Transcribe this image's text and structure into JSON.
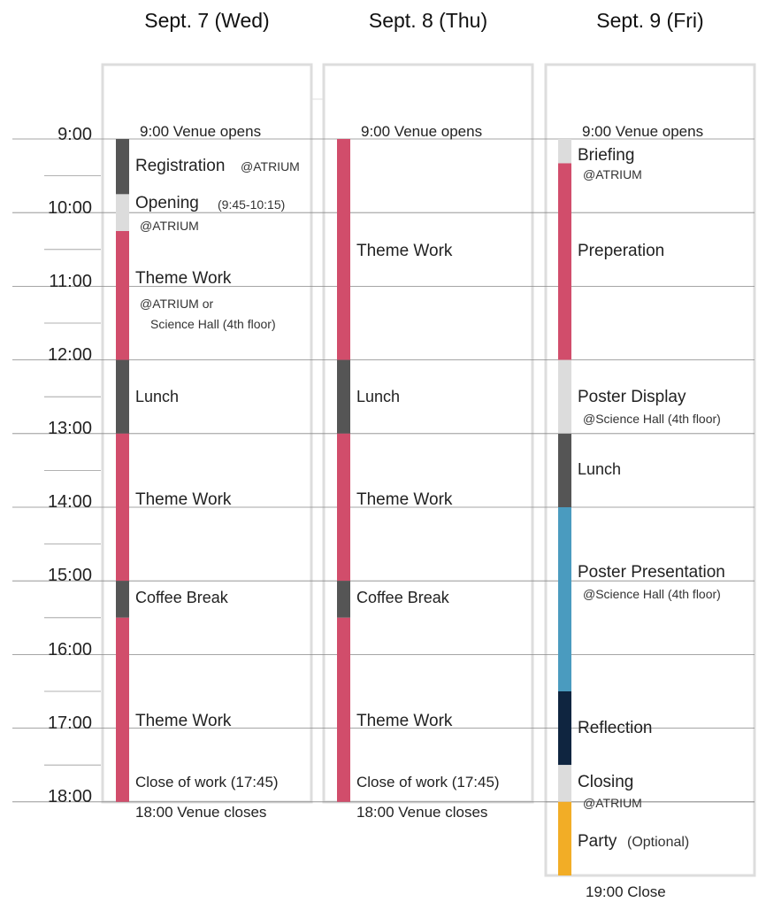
{
  "days": [
    {
      "title": "Sept. 7 (Wed)",
      "events": [
        {
          "start": 9.0,
          "end": 9.75,
          "color": "#555555"
        },
        {
          "start": 9.75,
          "end": 10.25,
          "color": "#dcdcdc"
        },
        {
          "start": 10.25,
          "end": 12.0,
          "color": "#d14d6b"
        },
        {
          "start": 12.0,
          "end": 13.0,
          "color": "#555555"
        },
        {
          "start": 13.0,
          "end": 15.0,
          "color": "#d14d6b"
        },
        {
          "start": 15.0,
          "end": 15.5,
          "color": "#555555"
        },
        {
          "start": 15.5,
          "end": 18.0,
          "color": "#d14d6b"
        }
      ],
      "opens": "9:00  Venue opens",
      "registration": "Registration",
      "registration_at": "@ATRIUM",
      "opening": "Opening",
      "opening_time": "(9:45-10:15)",
      "opening_at": "@ATRIUM",
      "theme1": "Theme Work",
      "theme1_at1": "@ATRIUM or",
      "theme1_at2": "Science Hall (4th floor)",
      "lunch": "Lunch",
      "theme2": "Theme Work",
      "coffee": "Coffee Break",
      "theme3": "Theme Work",
      "close_work": "Close of work (17:45)",
      "closes": "18:00  Venue closes"
    },
    {
      "title": "Sept. 8 (Thu)",
      "events": [
        {
          "start": 9.0,
          "end": 12.0,
          "color": "#d14d6b"
        },
        {
          "start": 12.0,
          "end": 13.0,
          "color": "#555555"
        },
        {
          "start": 13.0,
          "end": 15.0,
          "color": "#d14d6b"
        },
        {
          "start": 15.0,
          "end": 15.5,
          "color": "#555555"
        },
        {
          "start": 15.5,
          "end": 18.0,
          "color": "#d14d6b"
        }
      ],
      "opens": "9:00  Venue opens",
      "theme1": "Theme Work",
      "lunch": "Lunch",
      "theme2": "Theme Work",
      "coffee": "Coffee Break",
      "theme3": "Theme Work",
      "close_work": "Close of work (17:45)",
      "closes": "18:00  Venue closes"
    },
    {
      "title": "Sept. 9 (Fri)",
      "events": [
        {
          "start": 9.0,
          "end": 9.33,
          "color": "#dcdcdc"
        },
        {
          "start": 9.33,
          "end": 12.0,
          "color": "#d14d6b"
        },
        {
          "start": 12.0,
          "end": 13.0,
          "color": "#dcdcdc"
        },
        {
          "start": 13.0,
          "end": 14.0,
          "color": "#555555"
        },
        {
          "start": 14.0,
          "end": 16.5,
          "color": "#4a9bbf"
        },
        {
          "start": 16.5,
          "end": 17.5,
          "color": "#0f2540"
        },
        {
          "start": 17.5,
          "end": 18.0,
          "color": "#dcdcdc"
        },
        {
          "start": 18.0,
          "end": 19.0,
          "color": "#f2ad26"
        }
      ],
      "opens": "9:00  Venue opens",
      "briefing": "Briefing",
      "briefing_at": "@ATRIUM",
      "preperation": "Preperation",
      "poster_display": "Poster Display",
      "poster_display_at": "@Science Hall (4th floor)",
      "lunch": "Lunch",
      "poster_presentation": "Poster Presentation",
      "poster_presentation_at": "@Science Hall (4th floor)",
      "reflection": "Reflection",
      "closing": "Closing",
      "closing_at": "@ATRIUM",
      "party": "Party",
      "party_note": "(Optional)",
      "close": "19:00  Close"
    }
  ],
  "times": [
    "9:00",
    "10:00",
    "11:00",
    "12:00",
    "13:00",
    "14:00",
    "15:00",
    "16:00",
    "17:00",
    "18:00"
  ]
}
